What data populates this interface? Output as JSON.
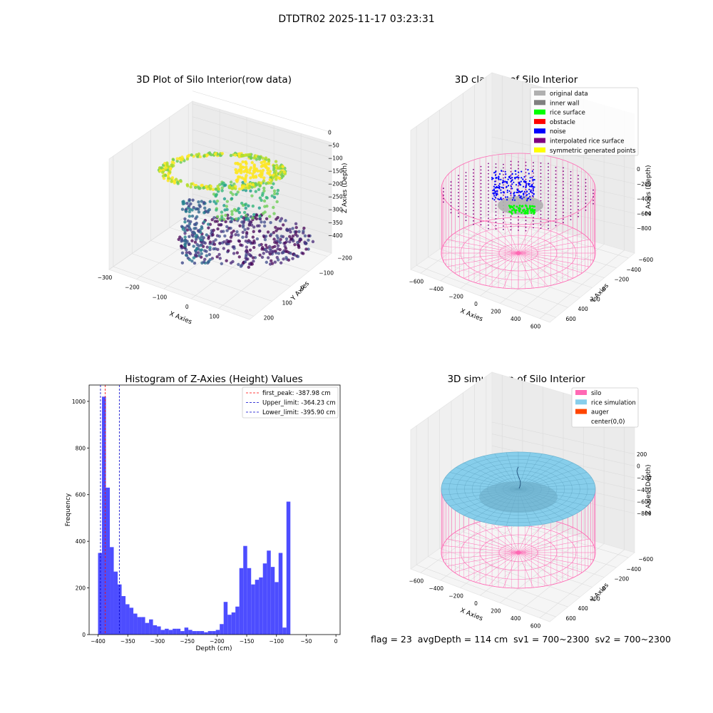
{
  "figure_title": "DTDTR02 2025-11-17 03:23:31",
  "footer": {
    "flag": "flag = 23",
    "avg_depth": "avgDepth = 114 cm",
    "sv1": "sv1 = 700~2300",
    "sv2": "sv2 = 700~2300"
  },
  "chart_data": [
    {
      "type": "scatter",
      "projection": "3d",
      "title": "3D Plot of Silo Interior(row data)",
      "xlabel": "X Axies",
      "ylabel": "Y Axies",
      "zlabel": "Z Axies (Depth)",
      "x_ticks": [
        -300,
        -200,
        -100,
        0,
        100
      ],
      "y_ticks": [
        -200,
        -100,
        0,
        100,
        200
      ],
      "z_ticks": [
        0,
        -50,
        -100,
        -150,
        -200,
        -250,
        -300,
        -350,
        -400
      ],
      "colormap": "viridis"
    },
    {
      "type": "scatter",
      "projection": "3d",
      "title": "3D classify of Silo Interior",
      "xlabel": "X Axies",
      "ylabel": "Y Axies",
      "zlabel": "Z Axies (Depth)",
      "x_ticks": [
        -600,
        -400,
        -200,
        0,
        200,
        400,
        600
      ],
      "y_ticks": [
        -600,
        -400,
        -200,
        0,
        200,
        400,
        600
      ],
      "z_ticks": [
        0,
        -200,
        -400,
        -600,
        -800
      ],
      "legend_position": "upper-right",
      "legend": [
        {
          "label": "original data",
          "color": "#b0b0b0"
        },
        {
          "label": "inner wall",
          "color": "#808080"
        },
        {
          "label": "rice surface",
          "color": "#00ff00"
        },
        {
          "label": "obstacle",
          "color": "#ff0000"
        },
        {
          "label": "noise",
          "color": "#0000ff"
        },
        {
          "label": "interpolated rice surface",
          "color": "#800080"
        },
        {
          "label": "symmetric generated points",
          "color": "#ffff00"
        }
      ]
    },
    {
      "type": "bar",
      "title": "Histogram of Z-Axies (Height) Values",
      "xlabel": "Depth (cm)",
      "ylabel": "Frequency",
      "xlim": [
        -415,
        7
      ],
      "ylim": [
        0,
        1070
      ],
      "x_ticks": [
        -400,
        -350,
        -300,
        -250,
        -200,
        -150,
        -100,
        -50,
        0
      ],
      "y_ticks": [
        0,
        200,
        400,
        600,
        800,
        1000
      ],
      "bar_color": "#4d4dff",
      "bins_start": -400,
      "bin_width": 6.6,
      "values": [
        350,
        1020,
        630,
        375,
        270,
        215,
        165,
        130,
        115,
        90,
        75,
        75,
        50,
        65,
        40,
        35,
        20,
        25,
        20,
        25,
        25,
        15,
        30,
        20,
        15,
        15,
        15,
        10,
        15,
        15,
        20,
        45,
        140,
        85,
        95,
        120,
        285,
        380,
        285,
        215,
        235,
        245,
        305,
        360,
        290,
        225,
        350,
        30,
        570
      ],
      "lines": [
        {
          "label": "first_peak: -387.98 cm",
          "x": -387.98,
          "color": "#ff0000"
        },
        {
          "label": "Upper_limit: -364.23 cm",
          "x": -364.23,
          "color": "#0000cc"
        },
        {
          "label": "Lower_limit: -395.90 cm",
          "x": -395.9,
          "color": "#0000cc"
        }
      ],
      "legend_position": "upper-right"
    },
    {
      "type": "surface",
      "projection": "3d",
      "title": "3D simulation of Silo Interior",
      "xlabel": "X Axies",
      "ylabel": "Y Axies",
      "zlabel": "Z Axies (Depth)",
      "x_ticks": [
        -600,
        -400,
        -200,
        0,
        200,
        400,
        600
      ],
      "y_ticks": [
        -600,
        -400,
        -200,
        0,
        200,
        400,
        600
      ],
      "z_ticks": [
        200,
        0,
        -200,
        -400,
        -600,
        -800
      ],
      "legend_position": "upper-right",
      "legend": [
        {
          "label": "silo",
          "color": "#ff69b4"
        },
        {
          "label": "rice simulation",
          "color": "#87ceeb"
        },
        {
          "label": "auger",
          "color": "#ff4500"
        },
        {
          "label": "center(0,0)",
          "color": ""
        }
      ]
    }
  ]
}
